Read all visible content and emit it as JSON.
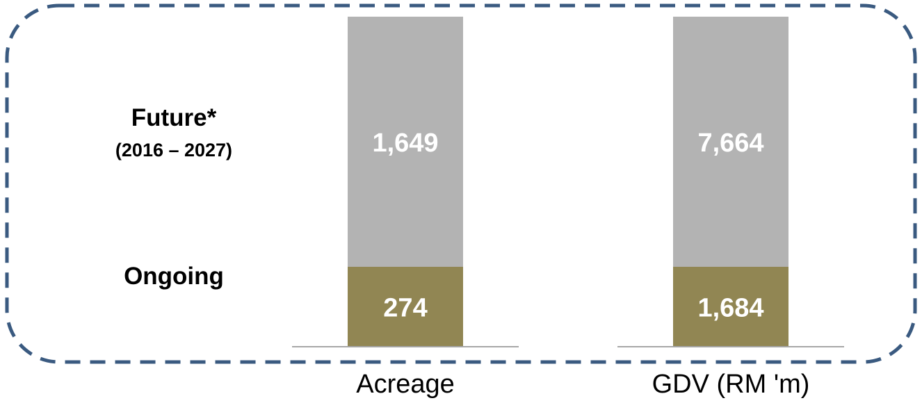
{
  "chart_data": {
    "type": "bar",
    "stacked": true,
    "categories": [
      "Acreage",
      "GDV (RM 'm)"
    ],
    "series": [
      {
        "name": "Ongoing",
        "values": [
          274,
          1684
        ],
        "value_labels": [
          "274",
          "1,684"
        ],
        "color": "#918653"
      },
      {
        "name": "Future*",
        "period": "(2016 – 2027)",
        "values": [
          1649,
          7664
        ],
        "value_labels": [
          "1,649",
          "7,664"
        ],
        "color": "#b3b3b3"
      }
    ],
    "normalized_per_category": true,
    "grid": false,
    "title": "",
    "xlabel": "",
    "ylabel": ""
  },
  "colors": {
    "frame_border": "#3a5a80",
    "baseline": "#a6a6a6",
    "value_text": "#ffffff"
  }
}
